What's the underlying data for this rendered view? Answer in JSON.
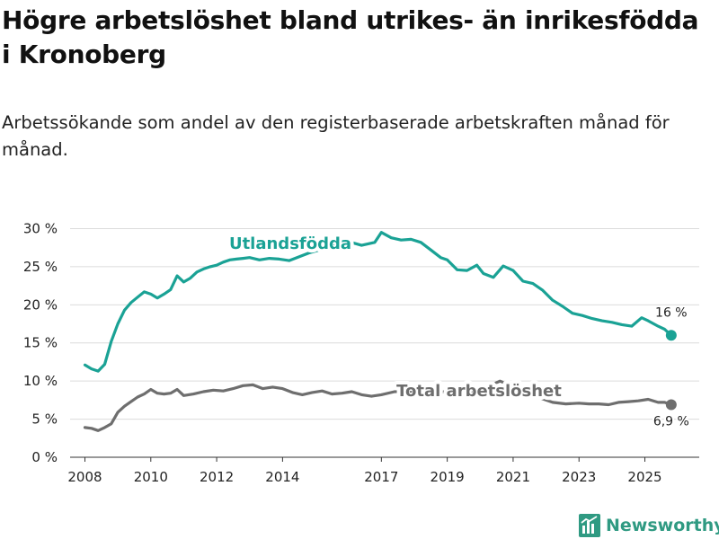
{
  "header": {
    "title": "Högre arbetslöshet bland utrikes- än inrikesfödda i Kronoberg",
    "subtitle": "Arbetssökande som andel av den registerbaserade arbetskraften månad för månad."
  },
  "brand": {
    "name": "Newsworthy",
    "color": "#2f9a82"
  },
  "chart_data": {
    "type": "line",
    "title": "Högre arbetslöshet bland utrikes- än inrikesfödda i Kronoberg",
    "subtitle": "Arbetssökande som andel av den registerbaserade arbetskraften månad för månad.",
    "xlabel": "",
    "ylabel": "",
    "x_ticks": [
      2008,
      2010,
      2012,
      2014,
      2017,
      2019,
      2021,
      2023,
      2025
    ],
    "y_ticks": [
      0,
      5,
      10,
      15,
      20,
      25,
      30
    ],
    "y_tick_labels": [
      "0 %",
      "5 %",
      "10 %",
      "15 %",
      "20 %",
      "25 %",
      "30 %"
    ],
    "ylim": [
      0,
      31
    ],
    "xlim": [
      2007.55,
      2026.65
    ],
    "grid": true,
    "series": [
      {
        "name": "Utlandsfödda",
        "color": "#1aa295",
        "end_label": "16 %",
        "x": [
          2008.0,
          2008.2,
          2008.4,
          2008.6,
          2008.8,
          2009.0,
          2009.2,
          2009.4,
          2009.6,
          2009.8,
          2010.0,
          2010.2,
          2010.4,
          2010.6,
          2010.8,
          2011.0,
          2011.2,
          2011.4,
          2011.6,
          2011.8,
          2012.0,
          2012.2,
          2012.4,
          2012.6,
          2012.8,
          2013.0,
          2013.3,
          2013.6,
          2013.9,
          2014.2,
          2014.5,
          2014.8,
          2015.2,
          2015.6,
          2016.0,
          2016.4,
          2016.8,
          2017.0,
          2017.3,
          2017.6,
          2017.9,
          2018.2,
          2018.5,
          2018.8,
          2019.0,
          2019.3,
          2019.6,
          2019.9,
          2020.1,
          2020.4,
          2020.7,
          2021.0,
          2021.3,
          2021.6,
          2021.9,
          2022.2,
          2022.5,
          2022.8,
          2023.1,
          2023.4,
          2023.7,
          2024.0,
          2024.3,
          2024.6,
          2024.9,
          2025.1,
          2025.4,
          2025.6,
          2025.8
        ],
        "values": [
          12.1,
          11.6,
          11.3,
          12.2,
          15.2,
          17.5,
          19.3,
          20.3,
          21.0,
          21.7,
          21.4,
          20.9,
          21.4,
          22.0,
          23.8,
          23.0,
          23.5,
          24.3,
          24.7,
          25.0,
          25.2,
          25.6,
          25.9,
          26.0,
          26.1,
          26.2,
          25.9,
          26.1,
          26.0,
          25.8,
          26.3,
          26.8,
          27.3,
          27.8,
          28.3,
          27.8,
          28.2,
          29.5,
          28.8,
          28.5,
          28.6,
          28.2,
          27.2,
          26.2,
          25.9,
          24.6,
          24.5,
          25.2,
          24.1,
          23.6,
          25.1,
          24.5,
          23.1,
          22.8,
          21.9,
          20.6,
          19.8,
          18.9,
          18.6,
          18.2,
          17.9,
          17.7,
          17.4,
          17.2,
          18.3,
          17.9,
          17.2,
          16.8,
          16.0
        ]
      },
      {
        "name": "Total arbetslöshet",
        "color": "#6e6e6e",
        "end_label": "6,9 %",
        "x": [
          2008.0,
          2008.2,
          2008.4,
          2008.6,
          2008.8,
          2009.0,
          2009.2,
          2009.4,
          2009.6,
          2009.8,
          2010.0,
          2010.2,
          2010.4,
          2010.6,
          2010.8,
          2011.0,
          2011.3,
          2011.6,
          2011.9,
          2012.2,
          2012.5,
          2012.8,
          2013.1,
          2013.4,
          2013.7,
          2014.0,
          2014.3,
          2014.6,
          2014.9,
          2015.2,
          2015.5,
          2015.8,
          2016.1,
          2016.4,
          2016.7,
          2017.0,
          2017.4,
          2017.8,
          2018.2,
          2018.6,
          2019.0,
          2019.4,
          2019.8,
          2020.2,
          2020.6,
          2021.0,
          2021.4,
          2021.8,
          2022.2,
          2022.6,
          2023.0,
          2023.3,
          2023.6,
          2023.9,
          2024.2,
          2024.5,
          2024.8,
          2025.1,
          2025.4,
          2025.6,
          2025.8
        ],
        "values": [
          3.9,
          3.8,
          3.5,
          3.9,
          4.4,
          5.9,
          6.7,
          7.3,
          7.9,
          8.3,
          8.9,
          8.4,
          8.3,
          8.4,
          8.9,
          8.1,
          8.3,
          8.6,
          8.8,
          8.7,
          9.0,
          9.4,
          9.5,
          9.0,
          9.2,
          9.0,
          8.5,
          8.2,
          8.5,
          8.7,
          8.3,
          8.4,
          8.6,
          8.2,
          8.0,
          8.2,
          8.6,
          8.7,
          8.4,
          8.5,
          8.6,
          8.5,
          8.7,
          9.2,
          10.0,
          9.3,
          8.4,
          7.8,
          7.2,
          7.0,
          7.1,
          7.0,
          7.0,
          6.9,
          7.2,
          7.3,
          7.4,
          7.6,
          7.2,
          7.2,
          6.9
        ]
      }
    ]
  }
}
